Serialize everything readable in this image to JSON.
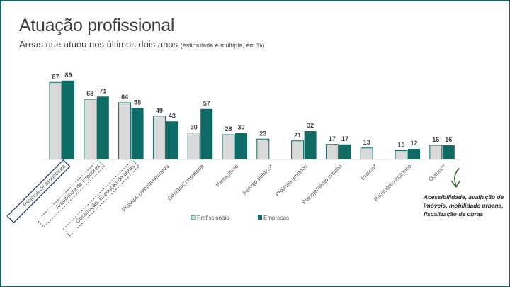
{
  "title": "Atuação profissional",
  "subtitle": "Áreas que atuou nos últimos dois anos",
  "subtitle_note": "(estimulada e múltipla, em %)",
  "annotation": "Acessibilidade, avaliação de imóveis, mobilidade urbana, fiscalização de obras",
  "colors": {
    "profissionais": "#d9d9d9",
    "empresas": "#0f6b66",
    "frame": "#0f6b66",
    "arrow": "#3f6b33"
  },
  "chart_data": {
    "type": "bar",
    "title": "Áreas que atuou nos últimos dois anos",
    "xlabel": "",
    "ylabel": "",
    "ylim": [
      0,
      100
    ],
    "legend_position": "bottom",
    "categories": [
      "Projetos de arquitetura",
      "Arquitetura de interiores",
      "Construção, Execução de obras",
      "Projetos complementares",
      "Gestão/Consultoria",
      "Paisagismo",
      "Serviço público*",
      "Projetos urbanos",
      "Planejamento urbano",
      "Ensino*",
      "Patrimônio histórico",
      "Outras**"
    ],
    "highlighted_categories": [
      "Projetos de arquitetura",
      "Arquitetura de interiores",
      "Construção, Execução de obras"
    ],
    "series": [
      {
        "name": "Profissionais",
        "values": [
          87,
          68,
          64,
          49,
          30,
          28,
          23,
          21,
          17,
          13,
          10,
          16
        ]
      },
      {
        "name": "Empresas",
        "values": [
          89,
          71,
          58,
          43,
          57,
          30,
          null,
          32,
          17,
          null,
          12,
          16
        ]
      }
    ]
  }
}
